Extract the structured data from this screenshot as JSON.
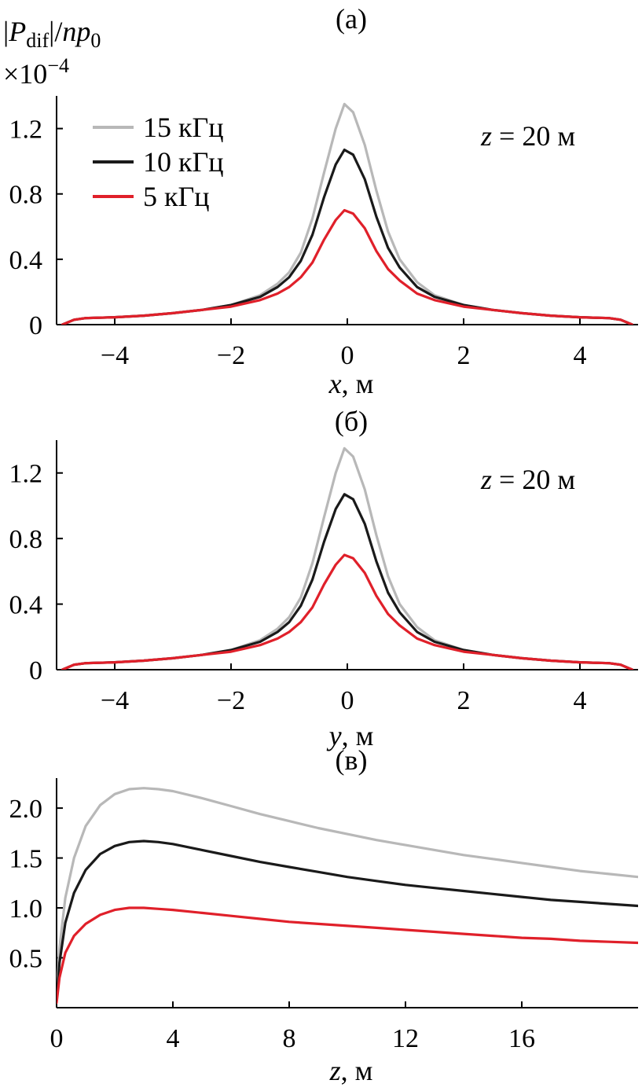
{
  "figure": {
    "ylabel_parts": [
      "|",
      "P",
      "dif",
      "|/",
      "np",
      "0"
    ],
    "yscale_parts": [
      "×10",
      "−4"
    ]
  },
  "chart_data": [
    {
      "panel": "(а)",
      "type": "line",
      "xlabel_var": "x",
      "xlabel_unit": ", м",
      "xlim": [
        -5,
        5
      ],
      "ylim": [
        0,
        1.4
      ],
      "xticks": [
        "−4",
        "−2",
        "0",
        "2",
        "4"
      ],
      "xtick_values": [
        -4,
        -2,
        0,
        2,
        4
      ],
      "yticks": [
        "0",
        "0.4",
        "0.8",
        "1.2"
      ],
      "ytick_values": [
        0,
        0.4,
        0.8,
        1.2
      ],
      "annotation": {
        "var": "z",
        "text": " = 20 м"
      },
      "legend": {
        "position": "top-left",
        "entries": [
          "15 кГц",
          "10 кГц",
          "5 кГц"
        ]
      },
      "grid": false,
      "series": [
        {
          "name": "15 кГц",
          "color": "#b8b8b8",
          "x": [
            -4.9,
            -4.7,
            -4.5,
            -4,
            -3.5,
            -3,
            -2.5,
            -2,
            -1.5,
            -1.2,
            -1,
            -0.8,
            -0.6,
            -0.4,
            -0.2,
            -0.05,
            0.1,
            0.3,
            0.5,
            0.7,
            0.9,
            1.2,
            1.5,
            2,
            2.5,
            3,
            3.5,
            4,
            4.5,
            4.7,
            4.9
          ],
          "y": [
            0.0,
            0.03,
            0.04,
            0.045,
            0.055,
            0.07,
            0.09,
            0.12,
            0.18,
            0.25,
            0.32,
            0.44,
            0.65,
            0.93,
            1.2,
            1.35,
            1.3,
            1.1,
            0.82,
            0.57,
            0.4,
            0.26,
            0.18,
            0.12,
            0.09,
            0.07,
            0.055,
            0.045,
            0.04,
            0.03,
            0.0
          ]
        },
        {
          "name": "10 кГц",
          "color": "#1a1a1a",
          "x": [
            -4.9,
            -4.7,
            -4.5,
            -4,
            -3.5,
            -3,
            -2.5,
            -2,
            -1.5,
            -1.2,
            -1,
            -0.8,
            -0.6,
            -0.4,
            -0.2,
            -0.05,
            0.1,
            0.3,
            0.5,
            0.7,
            0.9,
            1.2,
            1.5,
            2,
            2.5,
            3,
            3.5,
            4,
            4.5,
            4.7,
            4.9
          ],
          "y": [
            0.0,
            0.03,
            0.04,
            0.045,
            0.055,
            0.07,
            0.09,
            0.12,
            0.17,
            0.23,
            0.29,
            0.39,
            0.55,
            0.78,
            0.98,
            1.07,
            1.04,
            0.89,
            0.66,
            0.47,
            0.35,
            0.23,
            0.17,
            0.12,
            0.09,
            0.07,
            0.055,
            0.045,
            0.04,
            0.03,
            0.0
          ]
        },
        {
          "name": "5 кГц",
          "color": "#e0202a",
          "x": [
            -4.9,
            -4.7,
            -4.5,
            -4,
            -3.5,
            -3,
            -2.5,
            -2,
            -1.5,
            -1.2,
            -1,
            -0.8,
            -0.6,
            -0.4,
            -0.2,
            -0.05,
            0.1,
            0.3,
            0.5,
            0.7,
            0.9,
            1.2,
            1.5,
            2,
            2.5,
            3,
            3.5,
            4,
            4.5,
            4.7,
            4.9
          ],
          "y": [
            0.0,
            0.03,
            0.04,
            0.045,
            0.055,
            0.07,
            0.09,
            0.11,
            0.15,
            0.19,
            0.23,
            0.29,
            0.38,
            0.52,
            0.64,
            0.7,
            0.68,
            0.59,
            0.45,
            0.34,
            0.27,
            0.19,
            0.15,
            0.11,
            0.09,
            0.07,
            0.055,
            0.045,
            0.04,
            0.03,
            0.0
          ]
        }
      ]
    },
    {
      "panel": "(б)",
      "type": "line",
      "xlabel_var": "y",
      "xlabel_unit": ", м",
      "xlim": [
        -5,
        5
      ],
      "ylim": [
        0,
        1.4
      ],
      "xticks": [
        "−4",
        "−2",
        "0",
        "2",
        "4"
      ],
      "xtick_values": [
        -4,
        -2,
        0,
        2,
        4
      ],
      "yticks": [
        "0",
        "0.4",
        "0.8",
        "1.2"
      ],
      "ytick_values": [
        0,
        0.4,
        0.8,
        1.2
      ],
      "annotation": {
        "var": "z",
        "text": " = 20 м"
      },
      "grid": false,
      "series": [
        {
          "name": "15 кГц",
          "color": "#b8b8b8",
          "x": [
            -4.9,
            -4.7,
            -4.5,
            -4,
            -3.5,
            -3,
            -2.5,
            -2,
            -1.5,
            -1.2,
            -1,
            -0.8,
            -0.6,
            -0.4,
            -0.2,
            -0.05,
            0.1,
            0.3,
            0.5,
            0.7,
            0.9,
            1.2,
            1.5,
            2,
            2.5,
            3,
            3.5,
            4,
            4.5,
            4.7,
            4.9
          ],
          "y": [
            0.0,
            0.03,
            0.04,
            0.045,
            0.055,
            0.07,
            0.09,
            0.12,
            0.18,
            0.25,
            0.32,
            0.44,
            0.65,
            0.93,
            1.2,
            1.35,
            1.3,
            1.1,
            0.82,
            0.57,
            0.4,
            0.26,
            0.18,
            0.12,
            0.09,
            0.07,
            0.055,
            0.045,
            0.04,
            0.03,
            0.0
          ]
        },
        {
          "name": "10 кГц",
          "color": "#1a1a1a",
          "x": [
            -4.9,
            -4.7,
            -4.5,
            -4,
            -3.5,
            -3,
            -2.5,
            -2,
            -1.5,
            -1.2,
            -1,
            -0.8,
            -0.6,
            -0.4,
            -0.2,
            -0.05,
            0.1,
            0.3,
            0.5,
            0.7,
            0.9,
            1.2,
            1.5,
            2,
            2.5,
            3,
            3.5,
            4,
            4.5,
            4.7,
            4.9
          ],
          "y": [
            0.0,
            0.03,
            0.04,
            0.045,
            0.055,
            0.07,
            0.09,
            0.12,
            0.17,
            0.23,
            0.29,
            0.39,
            0.55,
            0.78,
            0.98,
            1.07,
            1.04,
            0.89,
            0.66,
            0.47,
            0.35,
            0.23,
            0.17,
            0.12,
            0.09,
            0.07,
            0.055,
            0.045,
            0.04,
            0.03,
            0.0
          ]
        },
        {
          "name": "5 кГц",
          "color": "#e0202a",
          "x": [
            -4.9,
            -4.7,
            -4.5,
            -4,
            -3.5,
            -3,
            -2.5,
            -2,
            -1.5,
            -1.2,
            -1,
            -0.8,
            -0.6,
            -0.4,
            -0.2,
            -0.05,
            0.1,
            0.3,
            0.5,
            0.7,
            0.9,
            1.2,
            1.5,
            2,
            2.5,
            3,
            3.5,
            4,
            4.5,
            4.7,
            4.9
          ],
          "y": [
            0.0,
            0.03,
            0.04,
            0.045,
            0.055,
            0.07,
            0.09,
            0.11,
            0.15,
            0.19,
            0.23,
            0.29,
            0.38,
            0.52,
            0.64,
            0.7,
            0.68,
            0.59,
            0.45,
            0.34,
            0.27,
            0.19,
            0.15,
            0.11,
            0.09,
            0.07,
            0.055,
            0.045,
            0.04,
            0.03,
            0.0
          ]
        }
      ]
    },
    {
      "panel": "(в)",
      "type": "line",
      "xlabel_var": "z",
      "xlabel_unit": ", м",
      "xlim": [
        0,
        20
      ],
      "ylim": [
        0,
        2.3
      ],
      "xticks": [
        "0",
        "4",
        "8",
        "12",
        "16"
      ],
      "xtick_values": [
        0,
        4,
        8,
        12,
        16
      ],
      "yticks": [
        "0.5",
        "1.0",
        "1.5",
        "2.0"
      ],
      "ytick_values": [
        0.5,
        1.0,
        1.5,
        2.0
      ],
      "grid": false,
      "series": [
        {
          "name": "15 кГц",
          "color": "#b8b8b8",
          "x": [
            0,
            0.1,
            0.3,
            0.6,
            1,
            1.5,
            2,
            2.5,
            3,
            3.5,
            4,
            5,
            6,
            7,
            8,
            9,
            10,
            11,
            12,
            13,
            14,
            15,
            16,
            17,
            18,
            19,
            20
          ],
          "y": [
            0.1,
            0.6,
            1.1,
            1.5,
            1.82,
            2.03,
            2.14,
            2.19,
            2.2,
            2.19,
            2.17,
            2.1,
            2.02,
            1.94,
            1.87,
            1.8,
            1.74,
            1.68,
            1.63,
            1.58,
            1.53,
            1.49,
            1.45,
            1.41,
            1.37,
            1.34,
            1.31
          ]
        },
        {
          "name": "10 кГц",
          "color": "#1a1a1a",
          "x": [
            0,
            0.1,
            0.3,
            0.6,
            1,
            1.5,
            2,
            2.5,
            3,
            3.5,
            4,
            5,
            6,
            7,
            8,
            9,
            10,
            11,
            12,
            13,
            14,
            15,
            16,
            17,
            18,
            19,
            20
          ],
          "y": [
            0.08,
            0.45,
            0.85,
            1.15,
            1.38,
            1.54,
            1.62,
            1.66,
            1.67,
            1.66,
            1.64,
            1.58,
            1.52,
            1.46,
            1.41,
            1.36,
            1.31,
            1.27,
            1.23,
            1.2,
            1.17,
            1.14,
            1.11,
            1.08,
            1.06,
            1.04,
            1.02
          ]
        },
        {
          "name": "5 кГц",
          "color": "#e0202a",
          "x": [
            0,
            0.1,
            0.3,
            0.6,
            1,
            1.5,
            2,
            2.5,
            3,
            3.5,
            4,
            5,
            6,
            7,
            8,
            9,
            10,
            11,
            12,
            13,
            14,
            15,
            16,
            17,
            18,
            19,
            20
          ],
          "y": [
            0.05,
            0.3,
            0.55,
            0.72,
            0.84,
            0.93,
            0.98,
            1.0,
            1.0,
            0.99,
            0.98,
            0.95,
            0.92,
            0.89,
            0.86,
            0.84,
            0.82,
            0.8,
            0.78,
            0.76,
            0.74,
            0.72,
            0.7,
            0.69,
            0.67,
            0.66,
            0.65
          ]
        }
      ]
    }
  ]
}
